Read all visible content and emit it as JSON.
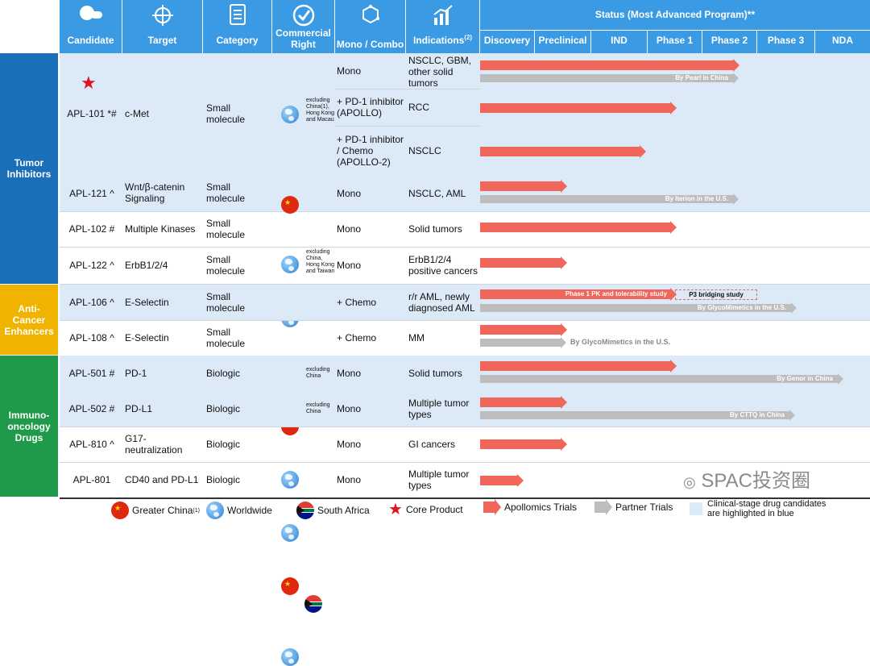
{
  "header": {
    "candidate": "Candidate",
    "target": "Target",
    "category": "Category",
    "commercial": "Commercial Right",
    "mono_combo": "Mono / Combo",
    "indications": "Indications",
    "indications_sup": "(2)",
    "status": "Status (Most Advanced Program)**",
    "stages": [
      "Discovery",
      "Preclinical",
      "IND",
      "Phase 1",
      "Phase 2",
      "Phase 3",
      "NDA"
    ]
  },
  "groups": {
    "tumor": "Tumor Inhibitors",
    "anti": "Anti-Cancer Enhancers",
    "immuno": "Immuno-oncology Drugs"
  },
  "rows": {
    "apl101": {
      "candidate": "APL-101 *#",
      "target": "c-Met",
      "category": "Small molecule",
      "right_note": "excluding China(1), Hong Kong and Macau",
      "sub": [
        {
          "combo": "Mono",
          "indication": "NSCLC, GBM, other solid tumors",
          "partner": "By Pearl in China"
        },
        {
          "combo": "+ PD-1 inhibitor (APOLLO)",
          "indication": "RCC"
        },
        {
          "combo": "+ PD-1 inhibitor / Chemo (APOLLO-2)",
          "indication": "NSCLC"
        }
      ]
    },
    "apl121": {
      "candidate": "APL-121 ^",
      "target": "Wnt/β-catenin Signaling",
      "category": "Small molecule",
      "combo": "Mono",
      "indication": "NSCLC, AML",
      "partner": "By Iterion in the U.S."
    },
    "apl102": {
      "candidate": "APL-102 #",
      "target": "Multiple Kinases",
      "category": "Small molecule",
      "combo": "Mono",
      "indication": "Solid tumors"
    },
    "apl122": {
      "candidate": "APL-122 ^",
      "target": "ErbB1/2/4",
      "category": "Small molecule",
      "right_note": "excluding China, Hong Kong and Taiwan",
      "combo": "Mono",
      "indication": "ErbB1/2/4 positive cancers"
    },
    "apl106": {
      "candidate": "APL-106 ^",
      "target": "E-Selectin",
      "category": "Small molecule",
      "combo": "+ Chemo",
      "indication": "r/r AML, newly diagnosed AML",
      "bar_label": "Phase 1 PK and tolerability study",
      "bridge": "P3 bridging study",
      "partner": "By GlycoMimetics in the U.S."
    },
    "apl108": {
      "candidate": "APL-108 ^",
      "target": "E-Selectin",
      "category": "Small molecule",
      "combo": "+ Chemo",
      "indication": "MM",
      "partner": "By GlycoMimetics in the U.S."
    },
    "apl501": {
      "candidate": "APL-501 #",
      "target": "PD-1",
      "category": "Biologic",
      "right_note": "excluding China",
      "combo": "Mono",
      "indication": "Solid tumors",
      "partner": "By Genor in China"
    },
    "apl502": {
      "candidate": "APL-502 #",
      "target": "PD-L1",
      "category": "Biologic",
      "right_note": "excluding China",
      "combo": "Mono",
      "indication": "Multiple tumor types",
      "partner": "By CTTQ in China"
    },
    "apl810": {
      "candidate": "APL-810 ^",
      "target": "G17-neutralization",
      "category": "Biologic",
      "combo": "Mono",
      "indication": "GI cancers"
    },
    "apl801": {
      "candidate": "APL-801",
      "target": "CD40 and PD-L1",
      "category": "Biologic",
      "combo": "Mono",
      "indication": "Multiple tumor types"
    }
  },
  "legend": {
    "greater_china": "Greater China",
    "greater_china_sup": "(1)",
    "worldwide": "Worldwide",
    "south_africa": "South Africa",
    "core": "Core Product",
    "apollomics": "Apollomics Trials",
    "partner": "Partner Trials",
    "clinical": "Clinical-stage drug candidates are highlighted in blue"
  },
  "watermark": "SPAC投资圈",
  "colors": {
    "header": "#3a9ae4",
    "tumor": "#1a6fb8",
    "anti": "#f0b400",
    "immuno": "#1f9a4a",
    "apollomics": "#f0665a",
    "partner": "#bdbdbd",
    "highlight": "#dce9f7"
  }
}
